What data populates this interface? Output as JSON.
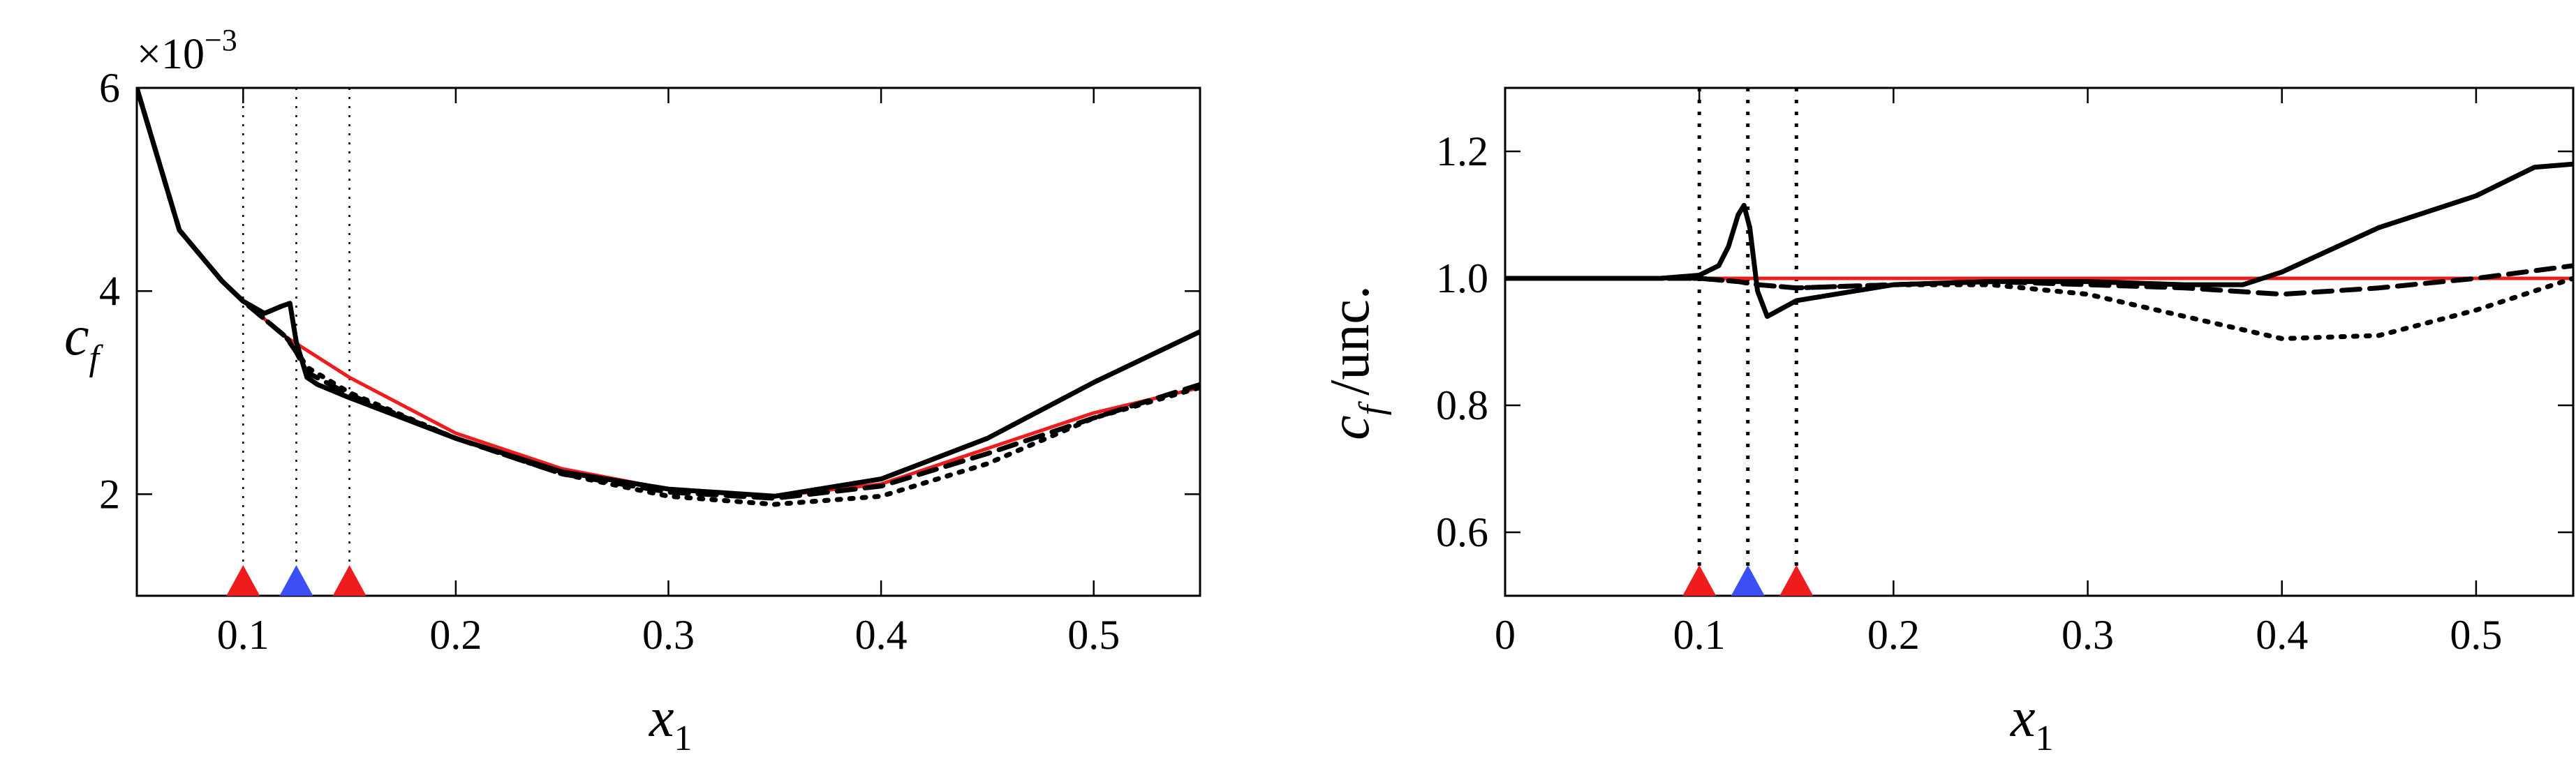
{
  "colors": {
    "black": "#000000",
    "red": "#ee1c1c",
    "blue": "#3b4ff5"
  },
  "chart_data": [
    {
      "type": "line",
      "xlabel_main": "x",
      "xlabel_sub": "1",
      "ylabel_main": "c",
      "ylabel_sub": "f",
      "scale_base": "×10",
      "scale_exp": "−3",
      "xlim": [
        0.05,
        0.55
      ],
      "ylim": [
        1,
        6
      ],
      "xticks": [
        0.1,
        0.2,
        0.3,
        0.4,
        0.5
      ],
      "xtick_labels": [
        "0.1",
        "0.2",
        "0.3",
        "0.4",
        "0.5"
      ],
      "yticks": [
        2,
        4,
        6
      ],
      "ytick_labels": [
        "2",
        "4",
        "6"
      ],
      "vlines": [
        0.1,
        0.125,
        0.15
      ],
      "markers": [
        {
          "x": 0.1,
          "color": "red"
        },
        {
          "x": 0.125,
          "color": "blue"
        },
        {
          "x": 0.15,
          "color": "red"
        }
      ],
      "series": [
        {
          "color": "red",
          "dash": "solid",
          "x": [
            0.05,
            0.07,
            0.09,
            0.1,
            0.12,
            0.15,
            0.2,
            0.25,
            0.3,
            0.35,
            0.4,
            0.45,
            0.5,
            0.55
          ],
          "y": [
            6.0,
            4.6,
            4.1,
            3.9,
            3.55,
            3.15,
            2.6,
            2.25,
            2.05,
            1.98,
            2.1,
            2.45,
            2.8,
            3.05
          ]
        },
        {
          "color": "black",
          "dash": "solid",
          "x": [
            0.05,
            0.07,
            0.09,
            0.1,
            0.11,
            0.118,
            0.122,
            0.125,
            0.13,
            0.135,
            0.15,
            0.2,
            0.25,
            0.3,
            0.35,
            0.4,
            0.45,
            0.5,
            0.55
          ],
          "y": [
            6.0,
            4.6,
            4.1,
            3.9,
            3.78,
            3.85,
            3.88,
            3.5,
            3.15,
            3.08,
            2.95,
            2.55,
            2.22,
            2.05,
            1.98,
            2.15,
            2.55,
            3.1,
            3.6
          ]
        },
        {
          "color": "black",
          "dash": "dashed",
          "x": [
            0.05,
            0.07,
            0.09,
            0.1,
            0.12,
            0.125,
            0.13,
            0.15,
            0.2,
            0.25,
            0.3,
            0.35,
            0.4,
            0.45,
            0.5,
            0.55
          ],
          "y": [
            6.0,
            4.6,
            4.1,
            3.9,
            3.55,
            3.4,
            3.2,
            2.98,
            2.55,
            2.2,
            2.02,
            1.96,
            2.08,
            2.4,
            2.75,
            3.08
          ]
        },
        {
          "color": "black",
          "dash": "dotted",
          "x": [
            0.05,
            0.07,
            0.09,
            0.1,
            0.12,
            0.125,
            0.13,
            0.15,
            0.2,
            0.25,
            0.3,
            0.35,
            0.4,
            0.45,
            0.5,
            0.55
          ],
          "y": [
            6.0,
            4.6,
            4.1,
            3.9,
            3.55,
            3.42,
            3.25,
            3.0,
            2.55,
            2.2,
            1.98,
            1.9,
            1.98,
            2.3,
            2.75,
            3.05
          ]
        }
      ]
    },
    {
      "type": "line",
      "xlabel_main": "x",
      "xlabel_sub": "1",
      "ylabel_main": "c",
      "ylabel_sub": "f",
      "ylabel_suffix": "/unc.",
      "xlim": [
        0,
        0.55
      ],
      "ylim": [
        0.5,
        1.3
      ],
      "xticks": [
        0,
        0.1,
        0.2,
        0.3,
        0.4,
        0.5
      ],
      "xtick_labels": [
        "0",
        "0.1",
        "0.2",
        "0.3",
        "0.4",
        "0.5"
      ],
      "yticks": [
        0.6,
        0.8,
        1.0,
        1.2
      ],
      "ytick_labels": [
        "0.6",
        "0.8",
        "1.0",
        "1.2"
      ],
      "vlines": [
        0.1,
        0.125,
        0.15
      ],
      "markers": [
        {
          "x": 0.1,
          "color": "red"
        },
        {
          "x": 0.125,
          "color": "blue"
        },
        {
          "x": 0.15,
          "color": "red"
        }
      ],
      "series": [
        {
          "color": "red",
          "dash": "solid",
          "x": [
            0,
            0.55
          ],
          "y": [
            1.0,
            1.0
          ]
        },
        {
          "color": "black",
          "dash": "solid",
          "x": [
            0,
            0.08,
            0.1,
            0.11,
            0.115,
            0.12,
            0.123,
            0.126,
            0.13,
            0.135,
            0.15,
            0.18,
            0.2,
            0.25,
            0.3,
            0.35,
            0.38,
            0.4,
            0.45,
            0.5,
            0.53,
            0.55
          ],
          "y": [
            1.0,
            1.0,
            1.005,
            1.02,
            1.05,
            1.1,
            1.115,
            1.08,
            0.98,
            0.94,
            0.965,
            0.98,
            0.99,
            0.995,
            0.995,
            0.99,
            0.99,
            1.01,
            1.08,
            1.13,
            1.175,
            1.18
          ]
        },
        {
          "color": "black",
          "dash": "dashed",
          "x": [
            0,
            0.1,
            0.12,
            0.13,
            0.15,
            0.2,
            0.25,
            0.3,
            0.35,
            0.4,
            0.45,
            0.5,
            0.55
          ],
          "y": [
            1.0,
            1.0,
            0.995,
            0.99,
            0.985,
            0.99,
            0.995,
            0.99,
            0.985,
            0.975,
            0.985,
            1.0,
            1.02
          ]
        },
        {
          "color": "black",
          "dash": "dotted",
          "x": [
            0,
            0.1,
            0.12,
            0.13,
            0.15,
            0.2,
            0.25,
            0.3,
            0.35,
            0.4,
            0.45,
            0.5,
            0.55
          ],
          "y": [
            1.0,
            1.0,
            0.995,
            0.99,
            0.985,
            0.99,
            0.99,
            0.975,
            0.94,
            0.905,
            0.91,
            0.95,
            1.0
          ]
        }
      ]
    }
  ]
}
